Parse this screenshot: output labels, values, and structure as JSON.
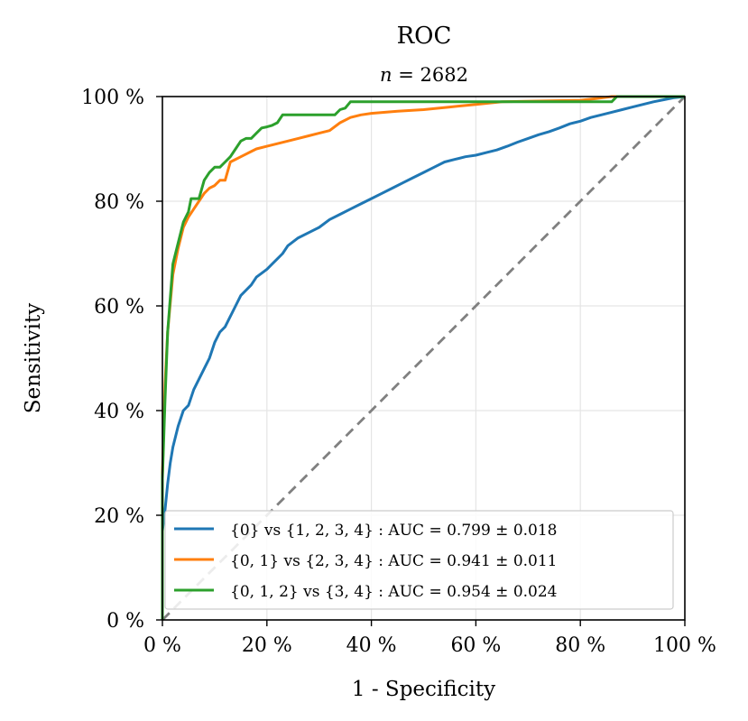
{
  "chart_data": {
    "type": "line",
    "title": "ROC",
    "subtitle_var": "n",
    "subtitle_eq": "= 2682",
    "xlabel": "1 - Specificity",
    "ylabel": "Sensitivity",
    "xlim": [
      0,
      100
    ],
    "ylim": [
      0,
      100
    ],
    "xticks": [
      0,
      20,
      40,
      60,
      80,
      100
    ],
    "yticks": [
      0,
      20,
      40,
      60,
      80,
      100
    ],
    "tick_labels": [
      "0 %",
      "20 %",
      "40 %",
      "60 %",
      "80 %",
      "100 %"
    ],
    "grid": true,
    "legend_position": "lower-right",
    "series": [
      {
        "name": "{0} vs {1, 2, 3, 4} : AUC = 0.799 ± 0.018",
        "color": "#1f77b4",
        "points": [
          [
            0,
            0
          ],
          [
            0,
            17
          ],
          [
            0.5,
            21
          ],
          [
            1,
            26
          ],
          [
            1.5,
            30
          ],
          [
            2,
            33
          ],
          [
            3,
            37
          ],
          [
            4,
            40
          ],
          [
            5,
            41
          ],
          [
            6,
            44
          ],
          [
            7,
            46
          ],
          [
            8,
            48
          ],
          [
            9,
            50
          ],
          [
            10,
            53
          ],
          [
            11,
            55
          ],
          [
            12,
            56
          ],
          [
            13,
            58
          ],
          [
            14,
            60
          ],
          [
            15,
            62
          ],
          [
            17,
            64
          ],
          [
            18,
            65.5
          ],
          [
            20,
            67
          ],
          [
            21,
            68
          ],
          [
            22,
            69
          ],
          [
            23,
            70
          ],
          [
            24,
            71.5
          ],
          [
            26,
            73
          ],
          [
            28,
            74
          ],
          [
            30,
            75
          ],
          [
            32,
            76.5
          ],
          [
            34,
            77.5
          ],
          [
            36,
            78.5
          ],
          [
            38,
            79.5
          ],
          [
            40,
            80.5
          ],
          [
            42,
            81.5
          ],
          [
            44,
            82.5
          ],
          [
            46,
            83.5
          ],
          [
            48,
            84.5
          ],
          [
            50,
            85.5
          ],
          [
            52,
            86.5
          ],
          [
            54,
            87.5
          ],
          [
            56,
            88
          ],
          [
            58,
            88.5
          ],
          [
            60,
            88.8
          ],
          [
            62,
            89.3
          ],
          [
            64,
            89.8
          ],
          [
            66,
            90.5
          ],
          [
            68,
            91.3
          ],
          [
            70,
            92
          ],
          [
            72,
            92.7
          ],
          [
            74,
            93.3
          ],
          [
            76,
            94
          ],
          [
            78,
            94.8
          ],
          [
            80,
            95.3
          ],
          [
            82,
            96
          ],
          [
            84,
            96.5
          ],
          [
            86,
            97
          ],
          [
            88,
            97.5
          ],
          [
            90,
            98
          ],
          [
            92,
            98.5
          ],
          [
            94,
            99
          ],
          [
            96,
            99.4
          ],
          [
            98,
            99.8
          ],
          [
            100,
            100
          ]
        ]
      },
      {
        "name": "{0, 1} vs {2, 3, 4} : AUC = 0.941 ± 0.011",
        "color": "#ff7f0e",
        "points": [
          [
            0,
            0
          ],
          [
            0,
            28
          ],
          [
            0.5,
            45
          ],
          [
            1,
            55
          ],
          [
            2,
            66
          ],
          [
            3,
            71
          ],
          [
            4,
            75
          ],
          [
            5,
            77
          ],
          [
            6,
            78.5
          ],
          [
            7,
            80
          ],
          [
            8,
            81.5
          ],
          [
            9,
            82.5
          ],
          [
            10,
            83
          ],
          [
            11,
            84
          ],
          [
            12,
            84
          ],
          [
            13,
            87.5
          ],
          [
            14,
            88
          ],
          [
            15,
            88.5
          ],
          [
            16,
            89
          ],
          [
            17,
            89.5
          ],
          [
            18,
            90
          ],
          [
            20,
            90.5
          ],
          [
            22,
            91
          ],
          [
            24,
            91.5
          ],
          [
            26,
            92
          ],
          [
            28,
            92.5
          ],
          [
            30,
            93
          ],
          [
            32,
            93.5
          ],
          [
            34,
            95
          ],
          [
            36,
            96
          ],
          [
            38,
            96.5
          ],
          [
            40,
            96.8
          ],
          [
            45,
            97.2
          ],
          [
            50,
            97.5
          ],
          [
            55,
            98
          ],
          [
            60,
            98.5
          ],
          [
            65,
            99
          ],
          [
            80,
            99.3
          ],
          [
            83,
            99.6
          ],
          [
            86,
            100
          ],
          [
            100,
            100
          ]
        ]
      },
      {
        "name": "{0, 1, 2} vs {3, 4} : AUC = 0.954 ± 0.024",
        "color": "#2ca02c",
        "points": [
          [
            0,
            0
          ],
          [
            0,
            27
          ],
          [
            0.5,
            42
          ],
          [
            1,
            55
          ],
          [
            2,
            68
          ],
          [
            3,
            72
          ],
          [
            4,
            76
          ],
          [
            5,
            78
          ],
          [
            5.5,
            80.5
          ],
          [
            7,
            80.5
          ],
          [
            8,
            84
          ],
          [
            9,
            85.5
          ],
          [
            10,
            86.5
          ],
          [
            11,
            86.5
          ],
          [
            12,
            87.5
          ],
          [
            13,
            88.5
          ],
          [
            14,
            90
          ],
          [
            15,
            91.5
          ],
          [
            16,
            92
          ],
          [
            17,
            92
          ],
          [
            18,
            93
          ],
          [
            19,
            94
          ],
          [
            20,
            94.2
          ],
          [
            21,
            94.5
          ],
          [
            22,
            95
          ],
          [
            23,
            96.5
          ],
          [
            33,
            96.5
          ],
          [
            34,
            97.5
          ],
          [
            35,
            97.8
          ],
          [
            36,
            99
          ],
          [
            66,
            99
          ],
          [
            86,
            99
          ],
          [
            87,
            100
          ],
          [
            100,
            100
          ]
        ]
      },
      {
        "name": "chance",
        "color": "#808080",
        "dashed": true,
        "points": [
          [
            0,
            0
          ],
          [
            100,
            100
          ]
        ]
      }
    ]
  }
}
